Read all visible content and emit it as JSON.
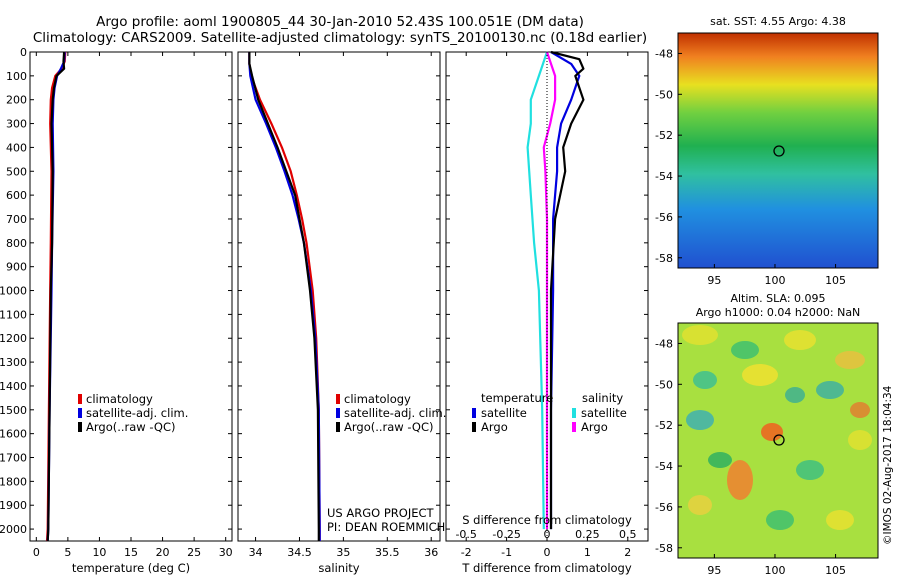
{
  "header": {
    "line1": "Argo profile: aoml 1900805_44 30-Jan-2010 52.43S 100.051E (DM data)",
    "line2": "Climatology: CARS2009. Satellite-adjusted climatology: synTS_20100130.nc (0.18d earlier)"
  },
  "depth_ticks": [
    "0",
    "100",
    "200",
    "300",
    "400",
    "500",
    "600",
    "700",
    "800",
    "900",
    "1000",
    "1100",
    "1200",
    "1300",
    "1400",
    "1500",
    "1600",
    "1700",
    "1800",
    "1900",
    "2000"
  ],
  "legend_main": {
    "climatology": "climatology",
    "satellite": "satellite-adj. clim.",
    "argo": "Argo(..raw -QC)"
  },
  "legend_diff": {
    "temperature": "temperature",
    "salinity": "salinity",
    "satellite": "satellite",
    "argo": "Argo"
  },
  "project": {
    "line1": "US ARGO PROJECT",
    "line2": "PI: DEAN ROEMMICH"
  },
  "map_sst": {
    "title": "sat. SST: 4.55  Argo: 4.38",
    "yticks": [
      "-48",
      "-50",
      "-52",
      "-54",
      "-56",
      "-58"
    ],
    "xticks": [
      "95",
      "100",
      "105"
    ]
  },
  "map_sla": {
    "title1": "Altim. SLA: 0.095",
    "title2": "Argo h1000: 0.04 h2000: NaN",
    "yticks": [
      "-48",
      "-50",
      "-52",
      "-54",
      "-56",
      "-58"
    ],
    "xticks": [
      "95",
      "100",
      "105"
    ]
  },
  "watermark": "©IMOS 02-Aug-2017 18:04:34",
  "colors": {
    "climatology": "#e00000",
    "satellite": "#0000e0",
    "argo": "#000000",
    "sal_satellite": "#20e0e0",
    "sal_argo": "#ff00ff"
  },
  "chart_data": [
    {
      "type": "line",
      "xlabel": "temperature (deg C)",
      "ylabel": "",
      "xlim": [
        -1,
        31
      ],
      "ylim": [
        2050,
        0
      ],
      "xticks": [
        "0",
        "5",
        "10",
        "15",
        "20",
        "25",
        "30"
      ],
      "series": [
        {
          "name": "climatology",
          "depth": [
            0,
            40,
            70,
            100,
            150,
            200,
            300,
            500,
            800,
            1000,
            1500,
            2000,
            2050
          ],
          "values": [
            4.6,
            4.5,
            4.0,
            3.0,
            2.5,
            2.3,
            2.2,
            2.4,
            2.3,
            2.2,
            2.0,
            1.8,
            1.7
          ]
        },
        {
          "name": "satellite-adj. clim.",
          "depth": [
            0,
            40,
            70,
            100,
            150,
            200,
            300,
            500,
            800,
            1000,
            1500,
            2000,
            2050
          ],
          "values": [
            4.5,
            4.4,
            3.9,
            3.3,
            2.9,
            2.7,
            2.6,
            2.7,
            2.5,
            2.4,
            2.1,
            1.9,
            1.8
          ]
        },
        {
          "name": "Argo(..raw -QC)",
          "depth": [
            0,
            40,
            70,
            100,
            150,
            200,
            300,
            500,
            800,
            1000,
            1500,
            2000,
            2050
          ],
          "values": [
            4.4,
            4.3,
            4.4,
            3.2,
            2.8,
            2.6,
            2.4,
            2.6,
            2.5,
            2.3,
            2.1,
            1.9,
            1.8
          ]
        }
      ]
    },
    {
      "type": "line",
      "xlabel": "salinity",
      "ylabel": "",
      "xlim": [
        33.8,
        36.1
      ],
      "ylim": [
        2050,
        0
      ],
      "xticks": [
        "34",
        "34.5",
        "35",
        "35.5",
        "36"
      ],
      "series": [
        {
          "name": "climatology",
          "depth": [
            0,
            50,
            100,
            200,
            300,
            400,
            500,
            600,
            700,
            800,
            1000,
            1200,
            1500,
            2000,
            2050
          ],
          "values": [
            33.93,
            33.93,
            33.95,
            34.05,
            34.18,
            34.3,
            34.4,
            34.47,
            34.53,
            34.58,
            34.65,
            34.69,
            34.72,
            34.73,
            34.73
          ]
        },
        {
          "name": "satellite-adj. clim.",
          "depth": [
            0,
            50,
            100,
            200,
            300,
            400,
            500,
            600,
            700,
            800,
            1000,
            1200,
            1500,
            2000,
            2050
          ],
          "values": [
            33.93,
            33.93,
            33.94,
            34.0,
            34.12,
            34.23,
            34.33,
            34.42,
            34.49,
            34.55,
            34.63,
            34.68,
            34.72,
            34.73,
            34.73
          ]
        },
        {
          "name": "Argo(..raw -QC)",
          "depth": [
            0,
            50,
            100,
            200,
            300,
            400,
            500,
            600,
            700,
            800,
            1000,
            1200,
            1500,
            2000,
            2050
          ],
          "values": [
            33.93,
            33.93,
            33.96,
            34.03,
            34.14,
            34.25,
            34.35,
            34.45,
            34.5,
            34.55,
            34.62,
            34.67,
            34.71,
            34.72,
            34.72
          ]
        }
      ]
    },
    {
      "type": "line",
      "xlabel": "T difference from climatology",
      "ylabel": "",
      "xlim": [
        -2.5,
        2.5
      ],
      "ylim": [
        2050,
        0
      ],
      "xticks": [
        "-2",
        "-1",
        "0",
        "1",
        "2"
      ],
      "top_xlabel": "S difference from climatology",
      "top_xticks": [
        "-0.5",
        "-0.25",
        "0",
        "0.25",
        "0.5"
      ],
      "series": [
        {
          "name": "temperature satellite",
          "depth": [
            0,
            50,
            100,
            200,
            300,
            400,
            500,
            700,
            1000,
            1500,
            2000
          ],
          "values": [
            0.1,
            0.6,
            0.8,
            0.6,
            0.35,
            0.25,
            0.25,
            0.15,
            0.15,
            0.1,
            0.1
          ]
        },
        {
          "name": "temperature Argo",
          "depth": [
            0,
            30,
            70,
            100,
            200,
            300,
            400,
            500,
            700,
            1000,
            1500,
            2000
          ],
          "values": [
            0.1,
            0.8,
            0.9,
            0.7,
            0.9,
            0.6,
            0.4,
            0.45,
            0.2,
            0.1,
            0.1,
            0.1
          ]
        },
        {
          "name": "salinity satellite",
          "depth": [
            0,
            100,
            200,
            300,
            400,
            600,
            800,
            1000,
            1500,
            2000
          ],
          "values": [
            0.0,
            -0.05,
            -0.1,
            -0.1,
            -0.12,
            -0.1,
            -0.08,
            -0.05,
            -0.03,
            -0.02
          ]
        },
        {
          "name": "salinity Argo",
          "depth": [
            0,
            100,
            200,
            300,
            400,
            500,
            700,
            1000,
            1500,
            2000
          ],
          "values": [
            0.0,
            0.05,
            0.05,
            0.02,
            -0.02,
            -0.01,
            0.0,
            0.0,
            0.0,
            0.0
          ]
        }
      ]
    }
  ]
}
